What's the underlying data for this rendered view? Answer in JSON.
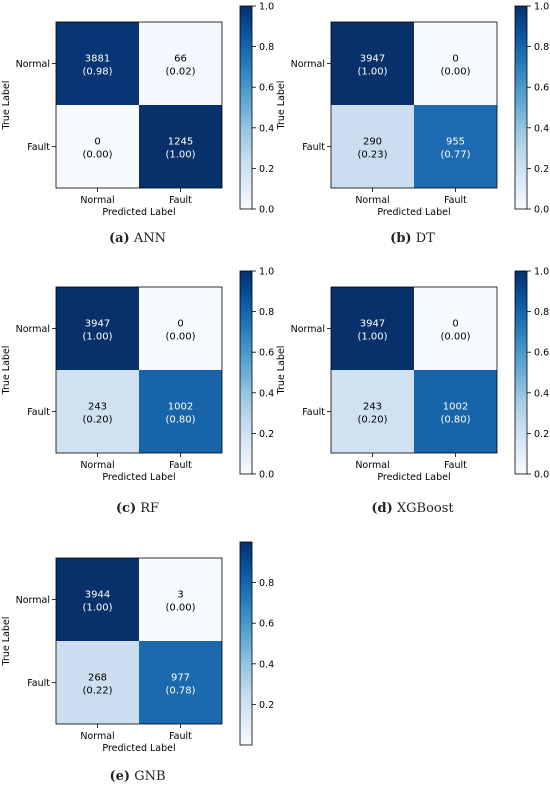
{
  "colorscale": [
    "#f7fbff",
    "#deebf7",
    "#c6dbef",
    "#9ecae1",
    "#6baed6",
    "#4292c6",
    "#2171b5",
    "#08519c",
    "#08306b"
  ],
  "chart_data": [
    {
      "type": "heatmap",
      "caption": {
        "letter": "(a)",
        "text": "ANN"
      },
      "xlabel": "Predicted Label",
      "ylabel": "True Label",
      "xticks": [
        "Normal",
        "Fault"
      ],
      "yticks": [
        "Normal",
        "Fault"
      ],
      "cells": [
        [
          {
            "count": "3881",
            "ratio": "(0.98)",
            "value": 0.98
          },
          {
            "count": "66",
            "ratio": "(0.02)",
            "value": 0.02
          }
        ],
        [
          {
            "count": "0",
            "ratio": "(0.00)",
            "value": 0.0
          },
          {
            "count": "1245",
            "ratio": "(1.00)",
            "value": 1.0
          }
        ]
      ],
      "colorbar": {
        "range": [
          0,
          1.0
        ],
        "ticks": [
          "0.0",
          "0.2",
          "0.4",
          "0.6",
          "0.8",
          "1.0"
        ]
      }
    },
    {
      "type": "heatmap",
      "caption": {
        "letter": "(b)",
        "text": "DT"
      },
      "xlabel": "Predicted Label",
      "ylabel": "True Label",
      "xticks": [
        "Normal",
        "Fault"
      ],
      "yticks": [
        "Normal",
        "Fault"
      ],
      "cells": [
        [
          {
            "count": "3947",
            "ratio": "(1.00)",
            "value": 1.0
          },
          {
            "count": "0",
            "ratio": "(0.00)",
            "value": 0.0
          }
        ],
        [
          {
            "count": "290",
            "ratio": "(0.23)",
            "value": 0.23
          },
          {
            "count": "955",
            "ratio": "(0.77)",
            "value": 0.77
          }
        ]
      ],
      "colorbar": {
        "range": [
          0,
          1.0
        ],
        "ticks": [
          "0.0",
          "0.2",
          "0.4",
          "0.6",
          "0.8",
          "1.0"
        ]
      }
    },
    {
      "type": "heatmap",
      "caption": {
        "letter": "(c)",
        "text": "RF"
      },
      "xlabel": "Predicted Label",
      "ylabel": "True Label",
      "xticks": [
        "Normal",
        "Fault"
      ],
      "yticks": [
        "Normal",
        "Fault"
      ],
      "cells": [
        [
          {
            "count": "3947",
            "ratio": "(1.00)",
            "value": 1.0
          },
          {
            "count": "0",
            "ratio": "(0.00)",
            "value": 0.0
          }
        ],
        [
          {
            "count": "243",
            "ratio": "(0.20)",
            "value": 0.2
          },
          {
            "count": "1002",
            "ratio": "(0.80)",
            "value": 0.8
          }
        ]
      ],
      "colorbar": {
        "range": [
          0,
          1.0
        ],
        "ticks": [
          "0.0",
          "0.2",
          "0.4",
          "0.6",
          "0.8",
          "1.0"
        ]
      }
    },
    {
      "type": "heatmap",
      "caption": {
        "letter": "(d)",
        "text": "XGBoost"
      },
      "xlabel": "Predicted Label",
      "ylabel": "True Label",
      "xticks": [
        "Normal",
        "Fault"
      ],
      "yticks": [
        "Normal",
        "Fault"
      ],
      "cells": [
        [
          {
            "count": "3947",
            "ratio": "(1.00)",
            "value": 1.0
          },
          {
            "count": "0",
            "ratio": "(0.00)",
            "value": 0.0
          }
        ],
        [
          {
            "count": "243",
            "ratio": "(0.20)",
            "value": 0.2
          },
          {
            "count": "1002",
            "ratio": "(0.80)",
            "value": 0.8
          }
        ]
      ],
      "colorbar": {
        "range": [
          0,
          1.0
        ],
        "ticks": [
          "0.0",
          "0.2",
          "0.4",
          "0.6",
          "0.8",
          "1.0"
        ]
      }
    },
    {
      "type": "heatmap",
      "caption": {
        "letter": "(e)",
        "text": "GNB"
      },
      "xlabel": "Predicted Label",
      "ylabel": "True Label",
      "xticks": [
        "Normal",
        "Fault"
      ],
      "yticks": [
        "Normal",
        "Fault"
      ],
      "cells": [
        [
          {
            "count": "3944",
            "ratio": "(1.00)",
            "value": 1.0
          },
          {
            "count": "3",
            "ratio": "(0.00)",
            "value": 0.0
          }
        ],
        [
          {
            "count": "268",
            "ratio": "(0.22)",
            "value": 0.22
          },
          {
            "count": "977",
            "ratio": "(0.78)",
            "value": 0.78
          }
        ]
      ],
      "colorbar": {
        "range": [
          0.0,
          1.0
        ],
        "ticks": [
          "0.2",
          "0.4",
          "0.6",
          "0.8"
        ]
      }
    }
  ]
}
